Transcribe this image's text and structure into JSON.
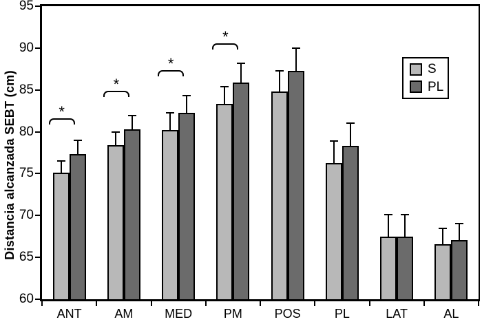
{
  "chart_data": {
    "type": "bar",
    "title": "",
    "ylabel": "Distancia alcanzada SEBT (cm)",
    "xlabel": "",
    "ylim": [
      60,
      95
    ],
    "yticks": [
      60,
      65,
      70,
      75,
      80,
      85,
      90,
      95
    ],
    "categories": [
      "ANT",
      "AM",
      "MED",
      "PM",
      "POS",
      "PL",
      "LAT",
      "AL"
    ],
    "series": [
      {
        "name": "S",
        "color": "#b8b8b8",
        "values": [
          75.1,
          78.4,
          80.2,
          83.3,
          84.8,
          76.3,
          67.5,
          66.6
        ],
        "errors_plus": [
          1.4,
          1.6,
          2.1,
          2.1,
          2.5,
          2.6,
          2.6,
          1.9
        ]
      },
      {
        "name": "PL",
        "color": "#6b6b6b",
        "values": [
          77.3,
          80.3,
          82.3,
          85.9,
          87.3,
          78.3,
          67.5,
          67.1
        ],
        "errors_plus": [
          1.7,
          1.6,
          2.0,
          2.3,
          2.7,
          2.7,
          2.6,
          1.9
        ]
      }
    ],
    "error_bars": "upper-only",
    "significance_markers": [
      {
        "category": "ANT",
        "symbol": "*",
        "bracket_y": 81.6
      },
      {
        "category": "AM",
        "symbol": "*",
        "bracket_y": 84.9
      },
      {
        "category": "MED",
        "symbol": "*",
        "bracket_y": 87.4
      },
      {
        "category": "PM",
        "symbol": "*",
        "bracket_y": 90.6
      }
    ],
    "legend": {
      "position": "upper-right",
      "entries": [
        "S",
        "PL"
      ]
    },
    "grid": false,
    "colors": {
      "background": "#ffffff",
      "axis": "#000000",
      "text": "#000000"
    }
  }
}
